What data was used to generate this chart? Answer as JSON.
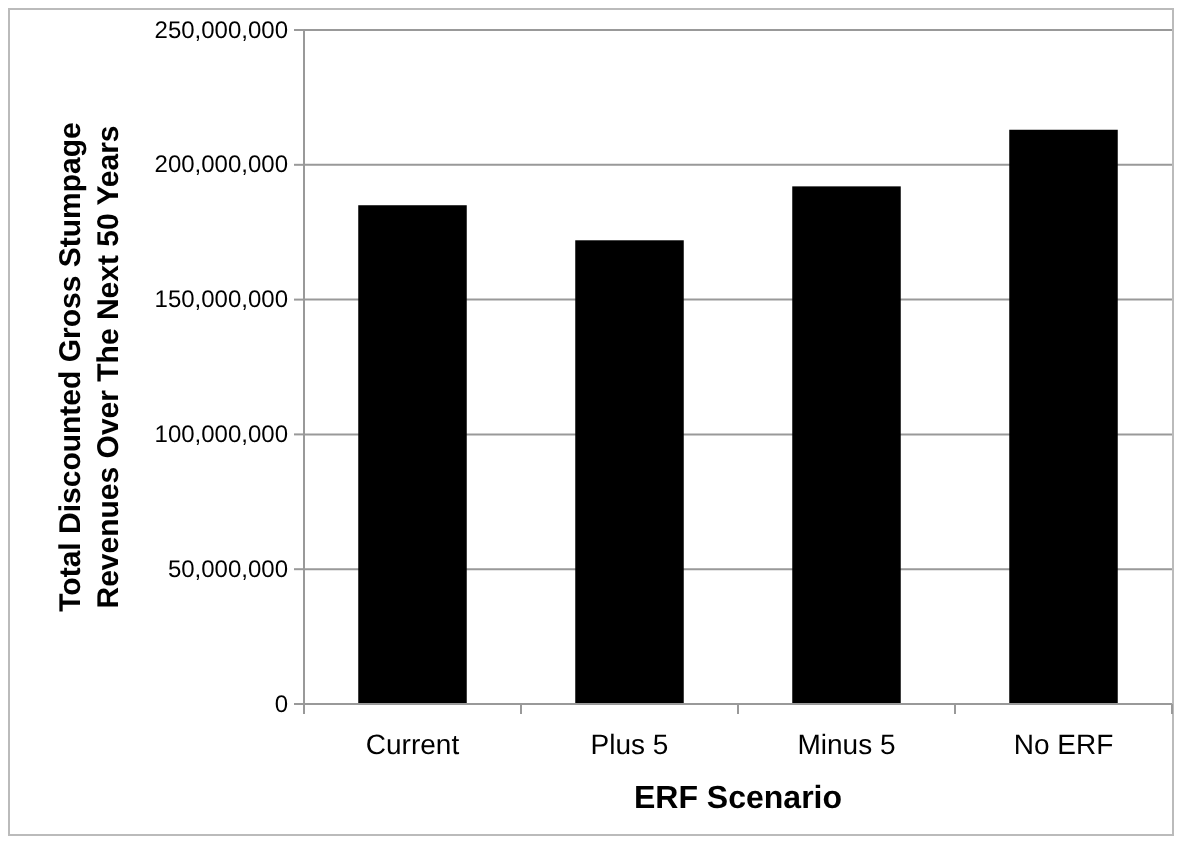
{
  "chart_data": {
    "type": "bar",
    "xlabel": "ERF Scenario",
    "ylabel": "Total Discounted Gross Stumpage Revenues Over The Next 50 Years",
    "categories": [
      "Current",
      "Plus 5",
      "Minus 5",
      "No ERF"
    ],
    "values": [
      185000000,
      172000000,
      192000000,
      213000000
    ],
    "color": "#000000",
    "ylim": [
      0,
      250000000
    ],
    "yticks": [
      {
        "value": 0,
        "label": "0"
      },
      {
        "value": 50000000,
        "label": "50,000,000"
      },
      {
        "value": 100000000,
        "label": "100,000,000"
      },
      {
        "value": 150000000,
        "label": "150,000,000"
      },
      {
        "value": 200000000,
        "label": "200,000,000"
      },
      {
        "value": 250000000,
        "label": "250,000,000"
      }
    ],
    "grid": "y"
  }
}
